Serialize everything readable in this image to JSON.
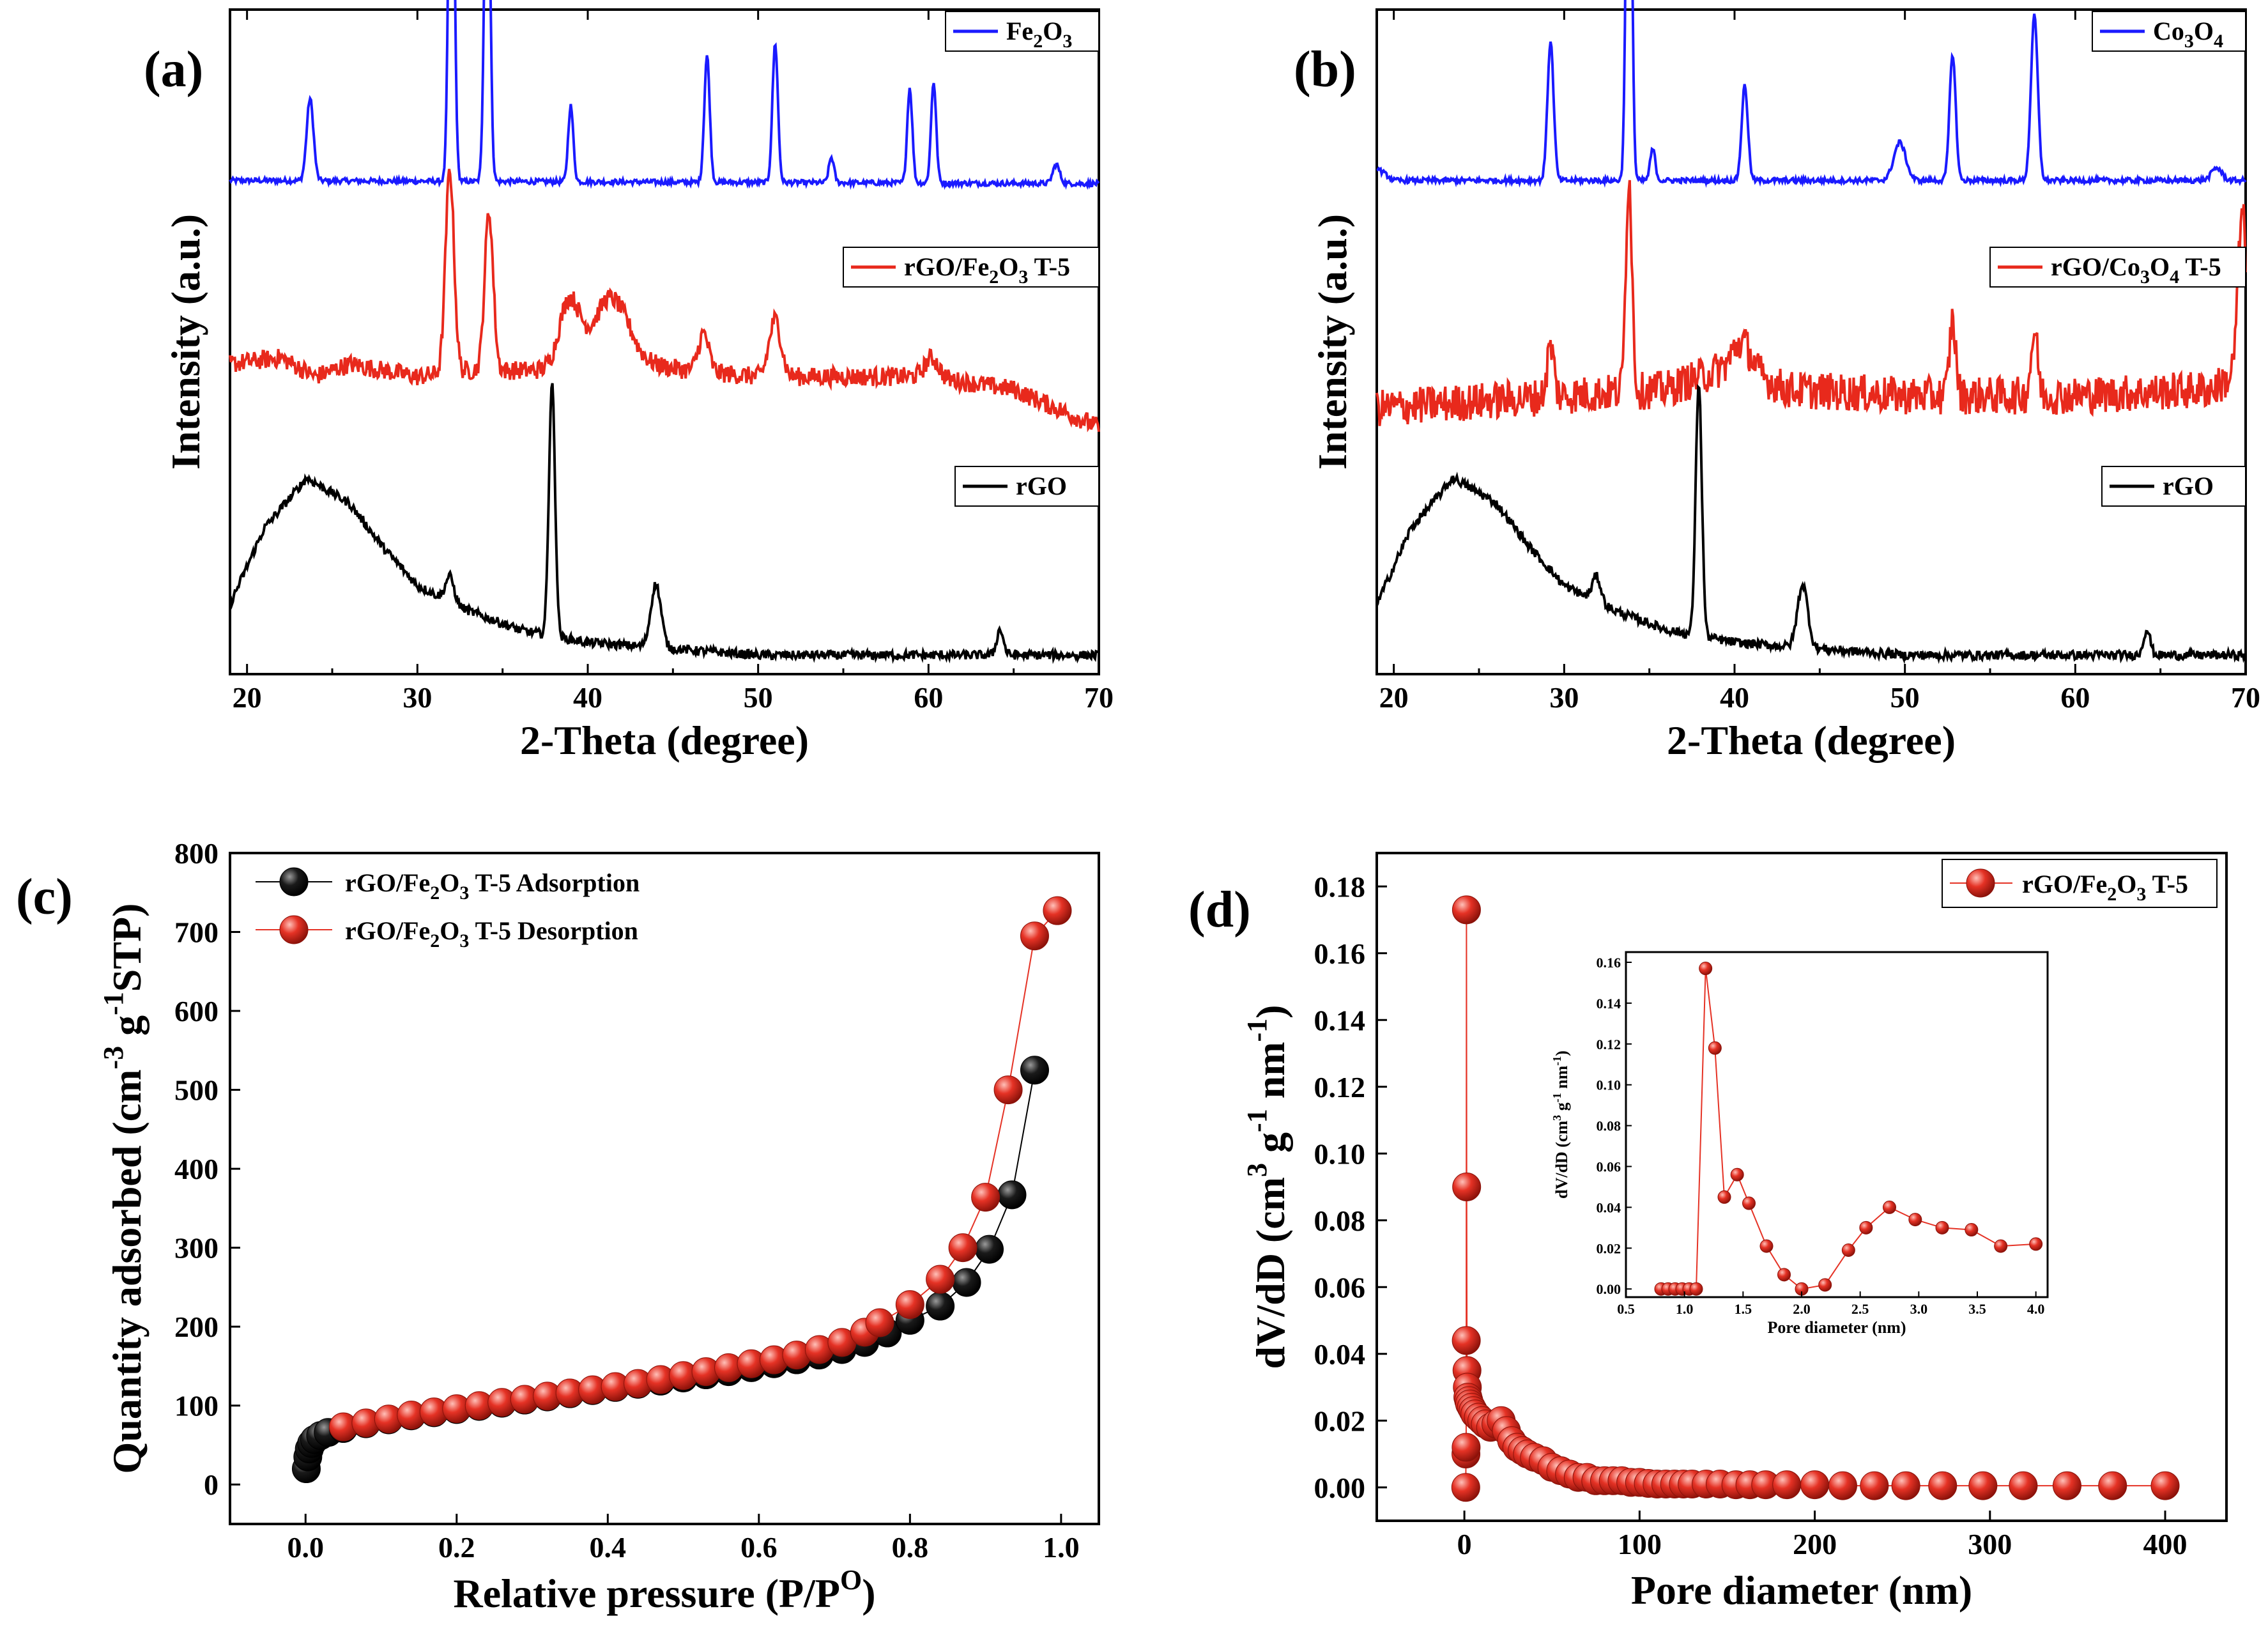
{
  "colors": {
    "blue": "#1a1aff",
    "red": "#e8291c",
    "black": "#000000",
    "sphere_red": "#e53225",
    "sphere_black": "#111111"
  },
  "chart_data": [
    {
      "panel": "(a)",
      "type": "line",
      "xlabel": "2-Theta (degree)",
      "ylabel": "Intensity (a.u.)",
      "xlim": [
        19,
        70
      ],
      "xticks": [
        20,
        30,
        40,
        50,
        60,
        70
      ],
      "legend": [
        "Fe2O3",
        "rGO/Fe2O3 T-5",
        "rGO"
      ],
      "legend_markup": [
        "Fe<tspan dy='12' font-size='30'>2</tspan><tspan dy='-12'>O</tspan><tspan dy='12' font-size='30'>3</tspan>",
        "rGO/Fe<tspan dy='12' font-size='30'>2</tspan><tspan dy='-12'>O</tspan><tspan dy='12' font-size='30'>3</tspan><tspan dy='-12'> T-5</tspan>",
        "rGO"
      ],
      "series": [
        {
          "name": "Fe2O3",
          "color": "blue",
          "offset": 0.78,
          "noise": 0.004,
          "baseline": [
            [
              19,
              0.0
            ],
            [
              70,
              -0.005
            ]
          ],
          "peaks": [
            [
              23.7,
              0.13,
              0.2
            ],
            [
              32.0,
              0.72,
              0.16
            ],
            [
              34.1,
              0.62,
              0.16
            ],
            [
              39.0,
              0.12,
              0.15
            ],
            [
              47.0,
              0.2,
              0.16
            ],
            [
              51.0,
              0.22,
              0.16
            ],
            [
              54.3,
              0.04,
              0.15
            ],
            [
              58.9,
              0.15,
              0.15
            ],
            [
              60.3,
              0.16,
              0.15
            ],
            [
              67.5,
              0.03,
              0.2
            ]
          ]
        },
        {
          "name": "rGO/Fe2O3 T-5",
          "color": "red",
          "offset": 0.42,
          "noise": 0.015,
          "baseline": [
            [
              19,
              0.07
            ],
            [
              22,
              0.08
            ],
            [
              24,
              0.05
            ],
            [
              26,
              0.07
            ],
            [
              30,
              0.05
            ],
            [
              33,
              0.06
            ],
            [
              38,
              0.06
            ],
            [
              41,
              0.1
            ],
            [
              43,
              0.07
            ],
            [
              46,
              0.06
            ],
            [
              50,
              0.05
            ],
            [
              56,
              0.05
            ],
            [
              60,
              0.05
            ],
            [
              65,
              0.03
            ],
            [
              70,
              -0.03
            ]
          ],
          "peaks": [
            [
              31.9,
              0.32,
              0.25
            ],
            [
              34.2,
              0.25,
              0.25
            ],
            [
              38.9,
              0.1,
              0.6
            ],
            [
              41.5,
              0.08,
              1.0
            ],
            [
              46.8,
              0.06,
              0.3
            ],
            [
              51.0,
              0.09,
              0.35
            ],
            [
              60.2,
              0.03,
              0.4
            ]
          ]
        },
        {
          "name": "rGO",
          "color": "black",
          "offset": 0.03,
          "noise": 0.007,
          "baseline": [
            [
              19,
              0.08
            ],
            [
              21,
              0.2
            ],
            [
              23.5,
              0.28
            ],
            [
              26,
              0.24
            ],
            [
              28,
              0.17
            ],
            [
              30,
              0.11
            ],
            [
              33,
              0.07
            ],
            [
              36,
              0.04
            ],
            [
              40,
              0.02
            ],
            [
              45,
              0.01
            ],
            [
              50,
              0.0
            ],
            [
              70,
              0.0
            ]
          ],
          "peaks": [
            [
              31.9,
              0.04,
              0.25
            ],
            [
              37.9,
              0.4,
              0.18
            ],
            [
              44.0,
              0.1,
              0.3
            ],
            [
              64.2,
              0.04,
              0.2
            ]
          ]
        }
      ]
    },
    {
      "panel": "(b)",
      "type": "line",
      "xlabel": "2-Theta (degree)",
      "ylabel": "Intensity (a.u.)",
      "xlim": [
        19,
        70
      ],
      "xticks": [
        20,
        30,
        40,
        50,
        60,
        70
      ],
      "legend": [
        "Co3O4",
        "rGO/Co3O4 T-5",
        "rGO"
      ],
      "legend_markup": [
        "Co<tspan dy='12' font-size='30'>3</tspan><tspan dy='-12'>O</tspan><tspan dy='12' font-size='30'>4</tspan>",
        "rGO/Co<tspan dy='12' font-size='30'>3</tspan><tspan dy='-12'>O</tspan><tspan dy='12' font-size='30'>4</tspan><tspan dy='-12'> T-5</tspan>",
        "rGO"
      ],
      "series": [
        {
          "name": "Co3O4",
          "color": "blue",
          "offset": 0.78,
          "noise": 0.004,
          "baseline": [
            [
              19,
              0.02
            ],
            [
              20,
              0.0
            ],
            [
              70,
              0.0
            ]
          ],
          "peaks": [
            [
              29.2,
              0.22,
              0.18
            ],
            [
              33.8,
              0.85,
              0.15
            ],
            [
              35.2,
              0.05,
              0.15
            ],
            [
              40.6,
              0.15,
              0.18
            ],
            [
              49.7,
              0.06,
              0.35
            ],
            [
              52.8,
              0.2,
              0.18
            ],
            [
              57.6,
              0.26,
              0.2
            ],
            [
              68.3,
              0.02,
              0.3
            ]
          ]
        },
        {
          "name": "rGO/Co3O4 T-5",
          "color": "red",
          "offset": 0.42,
          "noise": 0.03,
          "baseline": [
            [
              19,
              0.0
            ],
            [
              30,
              0.02
            ],
            [
              36,
              0.03
            ],
            [
              40,
              0.07
            ],
            [
              43,
              0.03
            ],
            [
              50,
              0.02
            ],
            [
              60,
              0.02
            ],
            [
              68,
              0.03
            ],
            [
              70,
              0.06
            ]
          ],
          "peaks": [
            [
              29.2,
              0.08,
              0.2
            ],
            [
              33.8,
              0.34,
              0.18
            ],
            [
              40.5,
              0.04,
              0.5
            ],
            [
              52.8,
              0.12,
              0.18
            ],
            [
              57.6,
              0.1,
              0.2
            ],
            [
              69.8,
              0.25,
              0.25
            ]
          ]
        },
        {
          "name": "rGO",
          "color": "black",
          "offset": 0.03,
          "noise": 0.007,
          "baseline": [
            [
              19,
              0.08
            ],
            [
              21,
              0.2
            ],
            [
              23.5,
              0.28
            ],
            [
              26,
              0.24
            ],
            [
              28,
              0.17
            ],
            [
              30,
              0.11
            ],
            [
              33,
              0.07
            ],
            [
              36,
              0.04
            ],
            [
              40,
              0.02
            ],
            [
              45,
              0.01
            ],
            [
              50,
              0.0
            ],
            [
              70,
              0.0
            ]
          ],
          "peaks": [
            [
              31.9,
              0.04,
              0.25
            ],
            [
              37.9,
              0.4,
              0.18
            ],
            [
              44.0,
              0.1,
              0.3
            ],
            [
              64.2,
              0.04,
              0.2
            ]
          ]
        }
      ]
    },
    {
      "panel": "(c)",
      "type": "scatter",
      "xlabel": "Relative pressure (P/P",
      "xlabel_sup": "O",
      "xlabel_end": ")",
      "ylabel": "Quantity adsorbed (cm",
      "ylabel_sup1": "-3",
      "ylabel_mid": " g",
      "ylabel_sup2": "-1",
      "ylabel_end": "STP)",
      "xlim": [
        -0.1,
        1.05
      ],
      "ylim": [
        -50,
        800
      ],
      "xticks": [
        0.0,
        0.2,
        0.4,
        0.6,
        0.8,
        1.0
      ],
      "xtick_labels": [
        "0.0",
        "0.2",
        "0.4",
        "0.6",
        "0.8",
        "1.0"
      ],
      "yticks": [
        0,
        100,
        200,
        300,
        400,
        500,
        600,
        700,
        800
      ],
      "legend_markup": [
        "rGO/Fe<tspan dy='12' font-size='30'>2</tspan><tspan dy='-12'>O</tspan><tspan dy='12' font-size='30'>3</tspan><tspan dy='-12'> T-5 Adsorption</tspan>",
        "rGO/Fe<tspan dy='12' font-size='30'>2</tspan><tspan dy='-12'>O</tspan><tspan dy='12' font-size='30'>3</tspan><tspan dy='-12'> T-5 Desorption</tspan>"
      ],
      "legend": [
        "rGO/Fe2O3 T-5 Adsorption",
        "rGO/Fe2O3 T-5 Desorption"
      ],
      "series": [
        {
          "name": "rGO/Fe2O3 T-5 Adsorption",
          "color": "sphere_black",
          "x": [
            0.001,
            0.003,
            0.005,
            0.008,
            0.012,
            0.02,
            0.03,
            0.05,
            0.08,
            0.11,
            0.14,
            0.17,
            0.2,
            0.23,
            0.26,
            0.29,
            0.32,
            0.35,
            0.38,
            0.41,
            0.44,
            0.47,
            0.5,
            0.53,
            0.56,
            0.59,
            0.62,
            0.65,
            0.68,
            0.71,
            0.74,
            0.77,
            0.8,
            0.84,
            0.875,
            0.905,
            0.935,
            0.965
          ],
          "y": [
            20,
            35,
            45,
            52,
            57,
            62,
            66,
            71,
            77,
            82,
            87,
            91,
            95,
            99,
            103,
            107,
            111,
            115,
            119,
            123,
            127,
            131,
            135,
            139,
            143,
            148,
            153,
            158,
            164,
            171,
            180,
            192,
            208,
            226,
            256,
            298,
            367,
            525
          ]
        },
        {
          "name": "rGO/Fe2O3 T-5 Desorption",
          "color": "sphere_red",
          "x": [
            0.05,
            0.08,
            0.11,
            0.14,
            0.17,
            0.2,
            0.23,
            0.26,
            0.29,
            0.32,
            0.35,
            0.38,
            0.41,
            0.44,
            0.47,
            0.5,
            0.53,
            0.56,
            0.59,
            0.62,
            0.65,
            0.68,
            0.71,
            0.74,
            0.76,
            0.8,
            0.84,
            0.87,
            0.9,
            0.93,
            0.965,
            0.995
          ],
          "y": [
            73,
            78,
            83,
            88,
            92,
            96,
            100,
            104,
            108,
            112,
            116,
            120,
            124,
            128,
            133,
            138,
            143,
            148,
            153,
            158,
            164,
            171,
            180,
            193,
            205,
            228,
            260,
            300,
            364,
            500,
            695,
            727
          ]
        }
      ]
    },
    {
      "panel": "(d)",
      "type": "scatter",
      "xlabel": "Pore diameter (nm)",
      "ylabel": "dV/dD (cm",
      "ylabel_sup1": "3",
      "ylabel_mid": " g",
      "ylabel_sup2": "-1",
      "ylabel_mid2": " nm",
      "ylabel_sup3": "-1",
      "ylabel_end": ")",
      "xlim": [
        -50,
        435
      ],
      "ylim": [
        -0.01,
        0.19
      ],
      "xticks": [
        0,
        100,
        200,
        300,
        400
      ],
      "yticks": [
        0.0,
        0.02,
        0.04,
        0.06,
        0.08,
        0.1,
        0.12,
        0.14,
        0.16,
        0.18
      ],
      "ytick_labels": [
        "0.00",
        "0.02",
        "0.04",
        "0.06",
        "0.08",
        "0.10",
        "0.12",
        "0.14",
        "0.16",
        "0.18"
      ],
      "legend_markup": [
        "rGO/Fe<tspan dy='12' font-size='30'>2</tspan><tspan dy='-12'>O</tspan><tspan dy='12' font-size='30'>3</tspan><tspan dy='-12'> T-5</tspan>"
      ],
      "legend": [
        "rGO/Fe2O3 T-5"
      ],
      "series": [
        {
          "name": "rGO/Fe2O3 T-5",
          "color": "sphere_red",
          "x": [
            0.8,
            0.9,
            1.0,
            1.1,
            1.2,
            1.3,
            1.5,
            1.7,
            2.0,
            2.5,
            3.0,
            4.0,
            5,
            6,
            8,
            10,
            12,
            15,
            18,
            21,
            24,
            27,
            30,
            33,
            36,
            40,
            45,
            50,
            55,
            60,
            65,
            70,
            75,
            80,
            85,
            90,
            95,
            100,
            105,
            110,
            115,
            120,
            125,
            130,
            138,
            146,
            155,
            163,
            172,
            184,
            200,
            216,
            234,
            252,
            273,
            296,
            319,
            344,
            370,
            400
          ],
          "y": [
            0.0,
            0.01,
            0.012,
            0.044,
            0.173,
            0.09,
            0.035,
            0.03,
            0.027,
            0.026,
            0.025,
            0.024,
            0.023,
            0.022,
            0.021,
            0.02,
            0.019,
            0.018,
            0.019,
            0.02,
            0.017,
            0.014,
            0.012,
            0.011,
            0.01,
            0.009,
            0.008,
            0.006,
            0.005,
            0.004,
            0.003,
            0.003,
            0.002,
            0.002,
            0.002,
            0.002,
            0.0015,
            0.0015,
            0.0012,
            0.001,
            0.001,
            0.001,
            0.001,
            0.001,
            0.001,
            0.001,
            0.0008,
            0.0008,
            0.0008,
            0.0008,
            0.0008,
            0.0005,
            0.0005,
            0.0005,
            0.0005,
            0.0005,
            0.0005,
            0.0005,
            0.0005,
            0.0005
          ]
        }
      ],
      "inset": {
        "type": "line",
        "xlabel": "Pore diameter (nm)",
        "ylabel": "dV/dD (cm",
        "ylabel_sup1": "3",
        "ylabel_mid": " g",
        "ylabel_sup2": "-1",
        "ylabel_mid2": " nm",
        "ylabel_sup3": "-1",
        "ylabel_end": ")",
        "xlim": [
          0.5,
          4.1
        ],
        "ylim": [
          -0.004,
          0.165
        ],
        "xticks": [
          0.5,
          1.0,
          1.5,
          2.0,
          2.5,
          3.0,
          3.5,
          4.0
        ],
        "xtick_labels": [
          "0.5",
          "1.0",
          "1.5",
          "2.0",
          "2.5",
          "3.0",
          "3.5",
          "4.0"
        ],
        "yticks": [
          0.0,
          0.02,
          0.04,
          0.06,
          0.08,
          0.1,
          0.12,
          0.14,
          0.16
        ],
        "ytick_labels": [
          "0.00",
          "0.02",
          "0.04",
          "0.06",
          "0.08",
          "0.10",
          "0.12",
          "0.14",
          "0.16"
        ],
        "x": [
          0.8,
          0.86,
          0.92,
          0.98,
          1.04,
          1.1,
          1.18,
          1.26,
          1.34,
          1.45,
          1.55,
          1.7,
          1.85,
          2.0,
          2.2,
          2.4,
          2.55,
          2.75,
          2.97,
          3.2,
          3.45,
          3.7,
          4.0
        ],
        "y": [
          0.0,
          0.0,
          0.0,
          0.0,
          0.0,
          0.0,
          0.157,
          0.118,
          0.045,
          0.056,
          0.042,
          0.021,
          0.007,
          0.0,
          0.002,
          0.019,
          0.03,
          0.04,
          0.034,
          0.03,
          0.029,
          0.021,
          0.022
        ]
      }
    }
  ]
}
